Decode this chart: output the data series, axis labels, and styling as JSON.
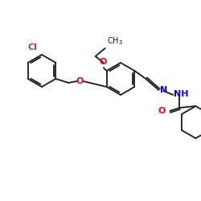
{
  "bg_color": "#ffffff",
  "bond_color": "#1a1a1a",
  "atom_colors": {
    "Cl": "#9b30d0",
    "O": "#ff0000",
    "N": "#0000ff",
    "C": "#1a1a1a"
  },
  "font_size": 7,
  "line_width": 1.3
}
